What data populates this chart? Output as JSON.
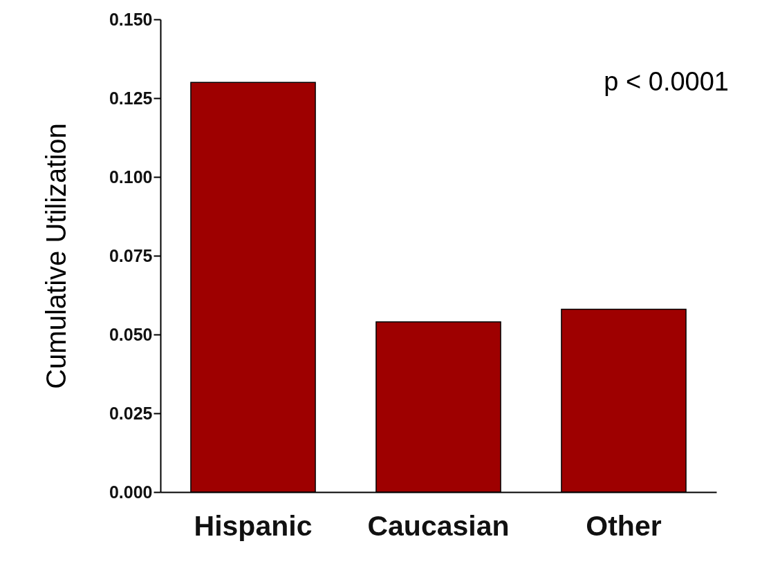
{
  "chart_data": {
    "type": "bar",
    "ylabel": "Cumulative Utilization",
    "categories": [
      "Hispanic",
      "Caucasian",
      "Other"
    ],
    "values": [
      0.13,
      0.054,
      0.058
    ],
    "color": "#9e0000",
    "ylim": [
      0,
      0.15
    ],
    "yticks": [
      {
        "value": 0,
        "label": "0.000"
      },
      {
        "value": 0.025,
        "label": "0.025"
      },
      {
        "value": 0.05,
        "label": "0.050"
      },
      {
        "value": 0.075,
        "label": "0.075"
      },
      {
        "value": 0.1,
        "label": "0.100"
      },
      {
        "value": 0.125,
        "label": "0.125"
      },
      {
        "value": 0.15,
        "label": "0.150"
      }
    ],
    "annotations": [
      "p < 0.0001"
    ],
    "grid": false
  }
}
